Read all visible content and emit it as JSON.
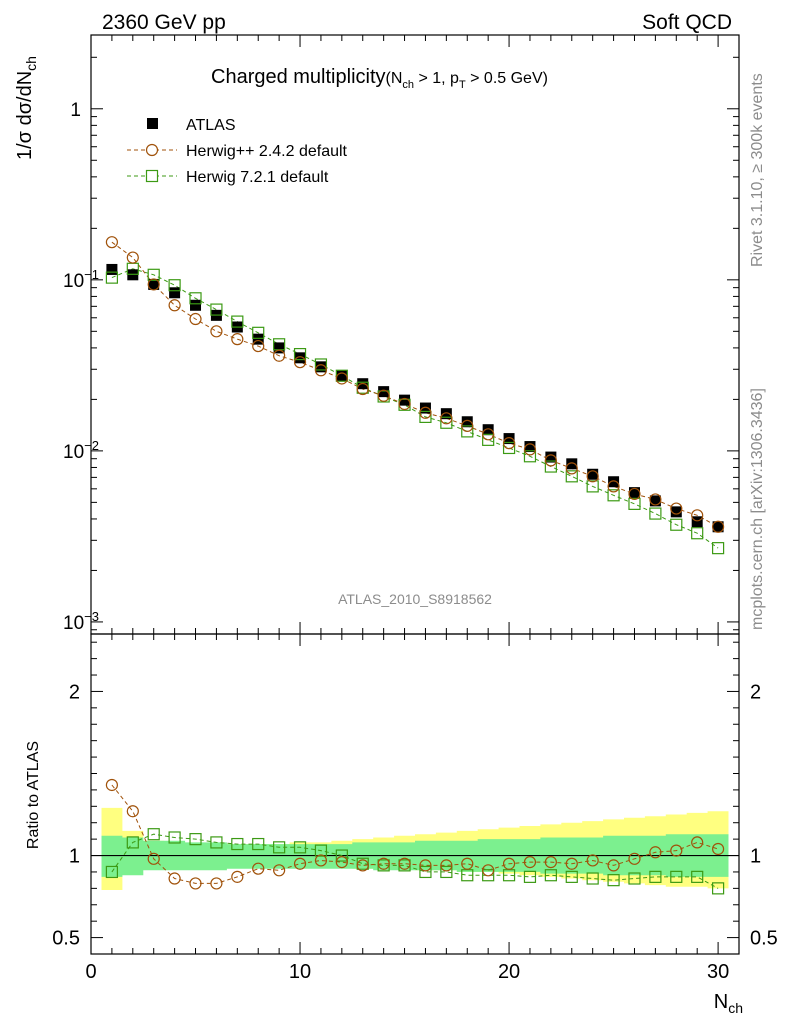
{
  "header": {
    "left": "2360 GeV pp",
    "right": "Soft QCD"
  },
  "side": {
    "rivet": "Rivet 3.1.10, ≥ 300k events",
    "mcplots": "mcplots.cern.ch [arXiv:1306.3436]"
  },
  "colors": {
    "atlas": "#000000",
    "herwigpp": "#a0520a",
    "herwig7": "#3c9a14",
    "band_inner": "#7cf08f",
    "band_outer": "#ffff80"
  },
  "chart_data": [
    {
      "type": "scatter",
      "title": "Charged multiplicity",
      "title_sub": "(N_ch > 1, p_T > 0.5 GeV)",
      "ylabel": "1/σ dσ/dN_ch",
      "yscale": "log",
      "ylim": [
        0.00085,
        2.7
      ],
      "xlim": [
        0,
        31
      ],
      "analysis_tag": "ATLAS_2010_S8918562",
      "y_ticks": [
        {
          "base": "10",
          "exp": "−3"
        },
        {
          "base": "10",
          "exp": "−2"
        },
        {
          "base": "10",
          "exp": "−1"
        },
        {
          "base": "1",
          "exp": ""
        }
      ],
      "legend": [
        "ATLAS",
        "Herwig++ 2.4.2 default",
        "Herwig 7.2.1 default"
      ],
      "x": [
        1,
        2,
        3,
        4,
        5,
        6,
        7,
        8,
        9,
        10,
        11,
        12,
        13,
        14,
        15,
        16,
        17,
        18,
        19,
        20,
        21,
        22,
        23,
        24,
        25,
        26,
        27,
        28,
        29,
        30
      ],
      "series": [
        {
          "name": "ATLAS",
          "marker": "square-filled",
          "values": [
            0.115,
            0.107,
            0.094,
            0.084,
            0.071,
            0.062,
            0.053,
            0.045,
            0.04,
            0.035,
            0.031,
            0.0275,
            0.0247,
            0.0222,
            0.0198,
            0.0178,
            0.0165,
            0.0148,
            0.0133,
            0.0118,
            0.0106,
            0.0092,
            0.0084,
            0.0073,
            0.0066,
            0.0057,
            0.0051,
            0.0044,
            0.00385,
            0.0036
          ]
        },
        {
          "name": "Herwig++ 2.4.2 default",
          "marker": "circle-open",
          "values": [
            0.166,
            0.135,
            0.094,
            0.071,
            0.059,
            0.05,
            0.045,
            0.041,
            0.036,
            0.033,
            0.0296,
            0.0265,
            0.023,
            0.021,
            0.0188,
            0.0167,
            0.0155,
            0.014,
            0.0125,
            0.0111,
            0.0102,
            0.0088,
            0.0079,
            0.0071,
            0.0062,
            0.0056,
            0.0052,
            0.0046,
            0.0042,
            0.0036
          ]
        },
        {
          "name": "Herwig 7.2.1 default",
          "marker": "square-open",
          "values": [
            0.103,
            0.116,
            0.107,
            0.093,
            0.078,
            0.067,
            0.057,
            0.049,
            0.042,
            0.0368,
            0.032,
            0.0275,
            0.0234,
            0.0208,
            0.0186,
            0.0158,
            0.0146,
            0.013,
            0.0116,
            0.0104,
            0.0093,
            0.0081,
            0.0071,
            0.0062,
            0.0055,
            0.0049,
            0.0043,
            0.0037,
            0.0033,
            0.0027
          ]
        }
      ]
    },
    {
      "type": "line",
      "ylabel": "Ratio to ATLAS",
      "xlabel": "N_ch",
      "ylim": [
        0.4,
        2.35
      ],
      "xlim": [
        0,
        31
      ],
      "x_ticks": [
        "0",
        "10",
        "20",
        "30"
      ],
      "y_ticks": [
        "0.5",
        "1",
        "2"
      ],
      "x": [
        1,
        2,
        3,
        4,
        5,
        6,
        7,
        8,
        9,
        10,
        11,
        12,
        13,
        14,
        15,
        16,
        17,
        18,
        19,
        20,
        21,
        22,
        23,
        24,
        25,
        26,
        27,
        28,
        29,
        30
      ],
      "band": {
        "inner_lo": [
          0.87,
          0.88,
          0.91,
          0.91,
          0.91,
          0.91,
          0.92,
          0.92,
          0.92,
          0.92,
          0.92,
          0.92,
          0.92,
          0.91,
          0.91,
          0.91,
          0.91,
          0.9,
          0.9,
          0.9,
          0.9,
          0.89,
          0.89,
          0.89,
          0.88,
          0.88,
          0.88,
          0.87,
          0.87,
          0.87
        ],
        "inner_hi": [
          1.12,
          1.11,
          1.09,
          1.09,
          1.08,
          1.08,
          1.07,
          1.07,
          1.07,
          1.07,
          1.07,
          1.07,
          1.08,
          1.08,
          1.08,
          1.09,
          1.09,
          1.09,
          1.1,
          1.1,
          1.1,
          1.11,
          1.11,
          1.11,
          1.12,
          1.12,
          1.12,
          1.13,
          1.13,
          1.13
        ],
        "outer_lo": [
          0.79,
          0.91,
          0.92,
          0.93,
          0.93,
          0.93,
          0.93,
          0.93,
          0.93,
          0.93,
          0.93,
          0.93,
          0.92,
          0.92,
          0.92,
          0.91,
          0.91,
          0.9,
          0.9,
          0.89,
          0.88,
          0.87,
          0.86,
          0.85,
          0.84,
          0.83,
          0.82,
          0.81,
          0.81,
          0.8
        ],
        "outer_hi": [
          1.29,
          1.15,
          1.09,
          1.08,
          1.07,
          1.07,
          1.07,
          1.07,
          1.07,
          1.08,
          1.08,
          1.09,
          1.1,
          1.11,
          1.12,
          1.13,
          1.14,
          1.15,
          1.16,
          1.17,
          1.18,
          1.19,
          1.2,
          1.21,
          1.22,
          1.23,
          1.24,
          1.25,
          1.26,
          1.27
        ]
      },
      "series": [
        {
          "name": "Herwig++ 2.4.2 default",
          "marker": "circle-open",
          "values": [
            1.43,
            1.27,
            0.98,
            0.86,
            0.83,
            0.83,
            0.87,
            0.92,
            0.91,
            0.95,
            0.97,
            0.96,
            0.94,
            0.95,
            0.95,
            0.94,
            0.94,
            0.95,
            0.91,
            0.95,
            0.96,
            0.96,
            0.95,
            0.97,
            0.94,
            0.98,
            1.02,
            1.03,
            1.08,
            1.04
          ]
        },
        {
          "name": "Herwig 7.2.1 default",
          "marker": "square-open",
          "values": [
            0.9,
            1.08,
            1.13,
            1.11,
            1.1,
            1.08,
            1.07,
            1.07,
            1.05,
            1.05,
            1.03,
            1.0,
            0.95,
            0.94,
            0.94,
            0.9,
            0.9,
            0.88,
            0.88,
            0.88,
            0.87,
            0.88,
            0.87,
            0.86,
            0.85,
            0.86,
            0.87,
            0.87,
            0.87,
            0.8
          ]
        }
      ]
    }
  ]
}
